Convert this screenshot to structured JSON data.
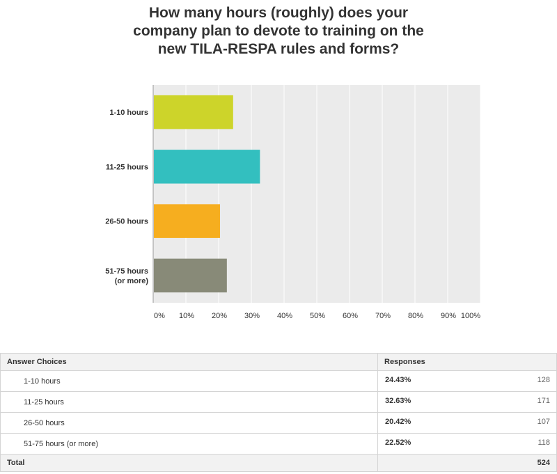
{
  "title_lines": [
    "How many hours (roughly) does your",
    "company plan to devote to training on the",
    "new TILA-RESPA rules and forms?"
  ],
  "colors": {
    "plot_bg": "#ebebeb",
    "grid": "#ffffff",
    "axis": "#999999"
  },
  "chart_data": {
    "type": "bar",
    "orientation": "horizontal",
    "title": "How many hours (roughly) does your company plan to devote to training on the new TILA-RESPA rules and forms?",
    "categories": [
      [
        "1-10 hours"
      ],
      [
        "11-25 hours"
      ],
      [
        "26-50 hours"
      ],
      [
        "51-75 hours",
        "(or more)"
      ]
    ],
    "values": [
      24.43,
      32.63,
      20.42,
      22.52
    ],
    "colors": [
      "#cdd42a",
      "#33bfbf",
      "#f6ae1f",
      "#888a78"
    ],
    "xlim": [
      0,
      100
    ],
    "xticks": [
      "0%",
      "10%",
      "20%",
      "30%",
      "40%",
      "50%",
      "60%",
      "70%",
      "80%",
      "90%",
      "100%"
    ],
    "grid": true
  },
  "table": {
    "header_choice": "Answer Choices",
    "header_responses": "Responses",
    "rows": [
      {
        "choice": "1-10 hours",
        "percent": "24.43%",
        "count": "128"
      },
      {
        "choice": "11-25 hours",
        "percent": "32.63%",
        "count": "171"
      },
      {
        "choice": "26-50 hours",
        "percent": "20.42%",
        "count": "107"
      },
      {
        "choice": "51-75 hours (or more)",
        "percent": "22.52%",
        "count": "118"
      }
    ],
    "total_label": "Total",
    "total_count": "524"
  }
}
